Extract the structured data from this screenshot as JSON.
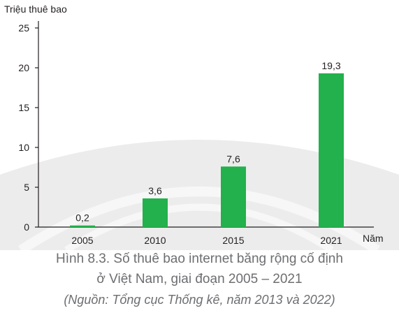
{
  "chart_data": {
    "type": "bar",
    "categories": [
      "2005",
      "2010",
      "2015",
      "2021"
    ],
    "values": [
      0.2,
      3.6,
      7.6,
      19.3
    ],
    "value_labels": [
      "0,2",
      "3,6",
      "7,6",
      "19,3"
    ],
    "ylabel": "Triệu thuê bao",
    "xlabel": "Năm",
    "ylim": [
      0,
      25
    ],
    "yticks": [
      0,
      5,
      10,
      15,
      20,
      25
    ],
    "grid": false,
    "bar_color": "#22b14c"
  },
  "caption": {
    "title": "Hình 8.3. Số thuê bao internet băng rộng cố định",
    "subtitle": "ở Việt Nam, giai đoạn 2005 – 2021",
    "source": "(Nguồn: Tổng cục Thống kê, năm 2013 và 2022)"
  },
  "colors": {
    "watermark": "#e6e6e6"
  }
}
